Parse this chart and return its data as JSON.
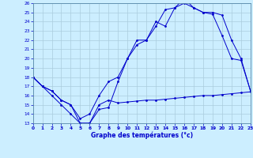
{
  "xlabel": "Graphe des températures (°c)",
  "xlim": [
    0,
    23
  ],
  "ylim": [
    13,
    26
  ],
  "yticks": [
    13,
    14,
    15,
    16,
    17,
    18,
    19,
    20,
    21,
    22,
    23,
    24,
    25,
    26
  ],
  "xticks": [
    0,
    1,
    2,
    3,
    4,
    5,
    6,
    7,
    8,
    9,
    10,
    11,
    12,
    13,
    14,
    15,
    16,
    17,
    18,
    19,
    20,
    21,
    22,
    23
  ],
  "bg_color": "#cceeff",
  "grid_color": "#aaccdd",
  "line_color": "#0000cc",
  "series1_x": [
    0,
    1,
    2,
    3,
    4,
    5,
    6,
    7,
    8,
    9,
    10,
    11,
    12,
    13,
    14,
    15,
    16,
    17,
    18,
    19,
    20,
    21,
    22,
    23
  ],
  "series1_y": [
    18,
    17,
    16,
    15,
    14,
    13,
    13,
    15,
    15.5,
    15.2,
    15.3,
    15.4,
    15.5,
    15.5,
    15.6,
    15.7,
    15.8,
    15.9,
    16.0,
    16.0,
    16.1,
    16.2,
    16.3,
    16.4
  ],
  "series2_x": [
    0,
    1,
    2,
    3,
    4,
    5,
    6,
    7,
    8,
    9,
    10,
    11,
    12,
    13,
    14,
    15,
    16,
    17,
    18,
    19,
    20,
    21,
    22,
    23
  ],
  "series2_y": [
    18,
    17,
    16.5,
    15.5,
    15,
    13.5,
    14,
    16,
    17.5,
    18,
    20,
    21.5,
    22,
    23.5,
    25.3,
    25.5,
    26.5,
    25.5,
    25,
    24.8,
    22.5,
    20,
    19.8,
    16.5
  ],
  "series3_x": [
    0,
    1,
    2,
    3,
    4,
    5,
    6,
    7,
    8,
    9,
    10,
    11,
    12,
    13,
    14,
    15,
    16,
    17,
    18,
    19,
    20,
    21,
    22,
    23
  ],
  "series3_y": [
    18,
    17,
    16.5,
    15.5,
    15,
    13,
    13,
    14.5,
    14.7,
    17.5,
    20,
    22,
    22,
    24,
    23.5,
    25.5,
    26,
    25.5,
    25,
    25,
    24.7,
    22,
    20,
    16.5
  ]
}
